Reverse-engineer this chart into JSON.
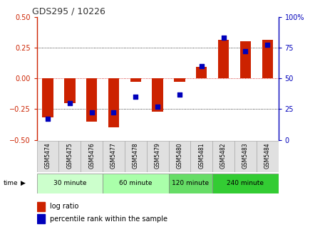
{
  "title": "GDS295 / 10226",
  "samples": [
    "GSM5474",
    "GSM5475",
    "GSM5476",
    "GSM5477",
    "GSM5478",
    "GSM5479",
    "GSM5480",
    "GSM5481",
    "GSM5482",
    "GSM5483",
    "GSM5484"
  ],
  "log_ratio": [
    -0.32,
    -0.2,
    -0.35,
    -0.4,
    -0.03,
    -0.27,
    -0.03,
    0.09,
    0.31,
    0.3,
    0.31
  ],
  "percentile_rank": [
    17,
    30,
    22,
    22,
    35,
    27,
    37,
    60,
    83,
    72,
    77
  ],
  "groups": [
    {
      "label": "30 minute",
      "start": 0,
      "end": 3,
      "color": "#ccffcc"
    },
    {
      "label": "60 minute",
      "start": 3,
      "end": 6,
      "color": "#aaffaa"
    },
    {
      "label": "120 minute",
      "start": 6,
      "end": 8,
      "color": "#66dd66"
    },
    {
      "label": "240 minute",
      "start": 8,
      "end": 11,
      "color": "#33cc33"
    }
  ],
  "bar_color": "#cc2200",
  "dot_color": "#0000bb",
  "ylim_left": [
    -0.5,
    0.5
  ],
  "ylim_right": [
    0,
    100
  ],
  "yticks_left": [
    -0.5,
    -0.25,
    0,
    0.25,
    0.5
  ],
  "yticks_right": [
    0,
    25,
    50,
    75,
    100
  ],
  "background_color": "#ffffff",
  "left_tick_color": "#cc2200",
  "right_tick_color": "#0000bb",
  "bar_width": 0.5,
  "dot_size": 18
}
